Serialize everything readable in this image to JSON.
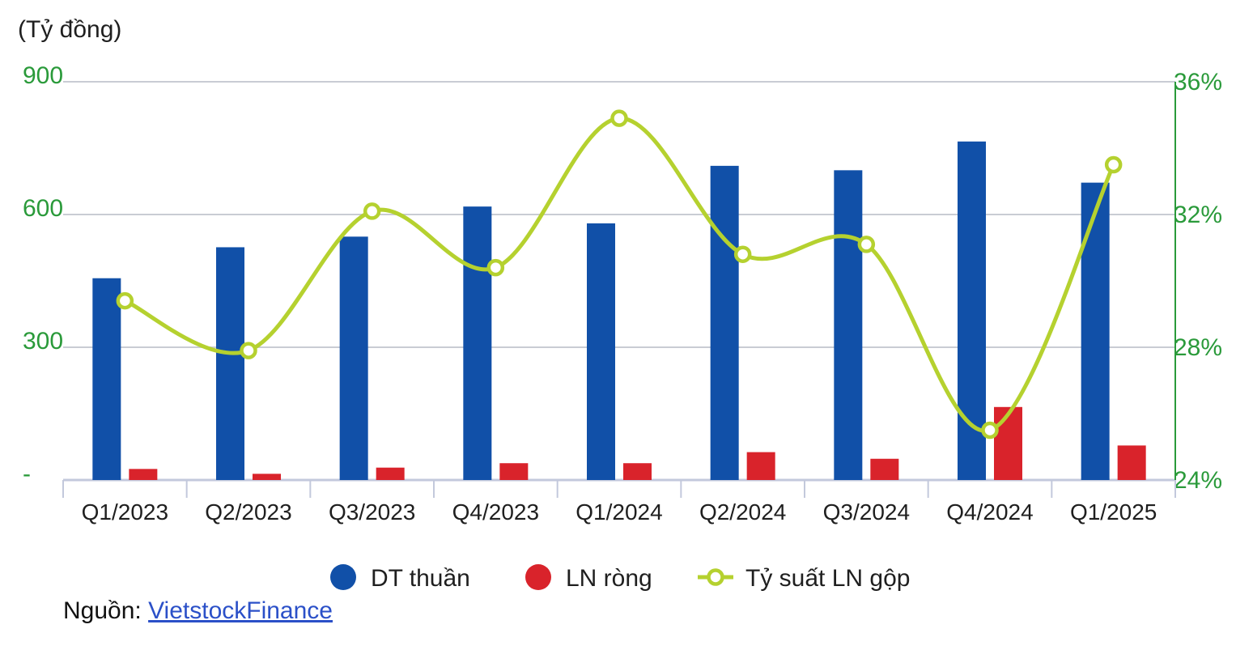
{
  "chart_data": {
    "type": "bar",
    "unit_label": "(Tỷ đồng)",
    "categories": [
      "Q1/2023",
      "Q2/2023",
      "Q3/2023",
      "Q4/2023",
      "Q1/2024",
      "Q2/2024",
      "Q3/2024",
      "Q4/2024",
      "Q1/2025"
    ],
    "series": [
      {
        "name": "DT thuần",
        "type": "bar",
        "axis": "left",
        "color": "#1150a8",
        "values": [
          456,
          526,
          550,
          618,
          580,
          710,
          700,
          765,
          672
        ]
      },
      {
        "name": "LN ròng",
        "type": "bar",
        "axis": "left",
        "color": "#d9232b",
        "values": [
          25,
          14,
          28,
          38,
          38,
          63,
          48,
          165,
          78
        ]
      },
      {
        "name": "Tỷ suất LN gộp",
        "type": "line",
        "axis": "right",
        "color": "#b5d12f",
        "values": [
          29.4,
          27.9,
          32.1,
          30.4,
          34.9,
          30.8,
          31.1,
          25.5,
          33.5
        ]
      }
    ],
    "y_left": {
      "min": 0,
      "max": 900,
      "ticks": [
        {
          "value": 900,
          "label": "900"
        },
        {
          "value": 600,
          "label": "600"
        },
        {
          "value": 300,
          "label": "300"
        },
        {
          "value": 0,
          "label": "-"
        }
      ]
    },
    "y_right": {
      "min": 24,
      "max": 36,
      "ticks": [
        {
          "value": 36,
          "label": "36%"
        },
        {
          "value": 32,
          "label": "32%"
        },
        {
          "value": 28,
          "label": "28%"
        },
        {
          "value": 24,
          "label": "24%"
        }
      ]
    },
    "grid": true,
    "legend_position": "bottom",
    "axis_label_color": "#2a9a3a"
  },
  "source": {
    "prefix": "Nguồn: ",
    "link_text": "VietstockFinance"
  }
}
